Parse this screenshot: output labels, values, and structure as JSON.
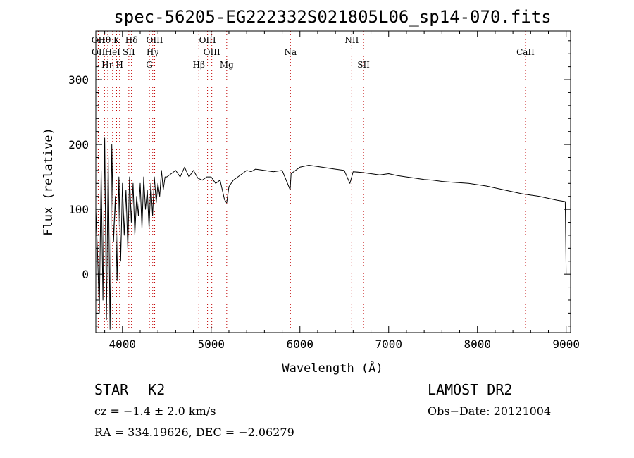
{
  "chart_data": {
    "type": "line",
    "title": "spec-56205-EG222332S021805L06_sp14-070.fits",
    "xlabel": "Wavelength (Å)",
    "ylabel": "Flux (relative)",
    "xlim": [
      3700,
      9050
    ],
    "ylim": [
      -90,
      375
    ],
    "xticks": [
      4000,
      5000,
      6000,
      7000,
      8000,
      9000
    ],
    "yticks": [
      0,
      100,
      200,
      300
    ],
    "grid": false,
    "legend": "none",
    "series": [
      {
        "x": [
          3700,
          3720,
          3740,
          3760,
          3780,
          3800,
          3820,
          3840,
          3860,
          3880,
          3900,
          3920,
          3940,
          3960,
          3980,
          4000,
          4020,
          4040,
          4060,
          4080,
          4100,
          4120,
          4140,
          4160,
          4180,
          4200,
          4220,
          4240,
          4260,
          4280,
          4300,
          4320,
          4340,
          4360,
          4380,
          4400,
          4420,
          4440,
          4460,
          4480,
          4500,
          4550,
          4600,
          4650,
          4700,
          4750,
          4800,
          4850,
          4900,
          4950,
          5000,
          5050,
          5100,
          5150,
          5175,
          5200,
          5250,
          5300,
          5350,
          5400,
          5450,
          5500,
          5600,
          5700,
          5800,
          5890,
          5900,
          6000,
          6100,
          6200,
          6300,
          6400,
          6500,
          6563,
          6600,
          6700,
          6800,
          6900,
          7000,
          7100,
          7200,
          7300,
          7400,
          7500,
          7600,
          7700,
          7800,
          7900,
          8000,
          8100,
          8200,
          8300,
          8400,
          8500,
          8600,
          8700,
          8800,
          8900,
          8950,
          8990,
          9000
        ],
        "y": [
          100,
          30,
          -60,
          160,
          -40,
          210,
          -70,
          180,
          -85,
          200,
          50,
          120,
          -10,
          150,
          20,
          140,
          60,
          130,
          40,
          150,
          80,
          140,
          60,
          120,
          90,
          140,
          70,
          150,
          100,
          130,
          70,
          140,
          90,
          150,
          110,
          140,
          120,
          160,
          130,
          150,
          150,
          155,
          160,
          150,
          165,
          150,
          160,
          148,
          145,
          150,
          150,
          140,
          145,
          115,
          110,
          135,
          145,
          150,
          155,
          160,
          158,
          162,
          160,
          158,
          160,
          130,
          155,
          165,
          168,
          166,
          164,
          162,
          160,
          140,
          158,
          157,
          155,
          153,
          155,
          152,
          150,
          148,
          146,
          145,
          143,
          142,
          141,
          140,
          138,
          136,
          133,
          130,
          127,
          124,
          122,
          120,
          117,
          114,
          113,
          112,
          0
        ]
      }
    ],
    "lines": [
      {
        "label": "Hθ",
        "wl": 3798
      },
      {
        "label": "K",
        "wl": 3934
      },
      {
        "label": "Hδ",
        "wl": 4102
      },
      {
        "label": "OIII",
        "wl": 4363
      },
      {
        "label": "OIII",
        "wl": 4959
      },
      {
        "label": "NII",
        "wl": 6584
      },
      {
        "label": "OII",
        "wl": 3727
      },
      {
        "label": "HeI",
        "wl": 3889
      },
      {
        "label": "SII",
        "wl": 4072
      },
      {
        "label": "Hγ",
        "wl": 4341
      },
      {
        "label": "OIII",
        "wl": 5007
      },
      {
        "label": "Na",
        "wl": 5893
      },
      {
        "label": "CaII",
        "wl": 8542
      },
      {
        "label": "OII",
        "wl": 3729
      },
      {
        "label": "Hη",
        "wl": 3835
      },
      {
        "label": "H",
        "wl": 3968
      },
      {
        "label": "G",
        "wl": 4304
      },
      {
        "label": "Hβ",
        "wl": 4861
      },
      {
        "label": "Mg",
        "wl": 5175
      },
      {
        "label": "SII",
        "wl": 6717
      }
    ],
    "line_color": "#c00000"
  },
  "info": {
    "class": "STAR",
    "subclass": "K2",
    "survey": "LAMOST DR2",
    "redshift": "cz = −1.4 ± 2.0 km/s",
    "obs_date": "Obs−Date: 20121004",
    "coords": "RA = 334.19626, DEC =  −2.06279"
  }
}
